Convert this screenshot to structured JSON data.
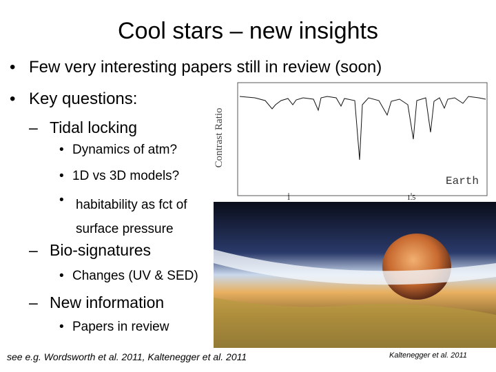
{
  "slide": {
    "title": "Cool stars – new insights",
    "bullets": [
      {
        "text": "Few very interesting papers still in review (soon)"
      },
      {
        "text": "Key questions:",
        "items": [
          {
            "text": "Tidal locking",
            "items": [
              "Dynamics of atm?",
              "1D vs 3D models?",
              "habitability as fct of surface pressure"
            ]
          },
          {
            "text": "Bio-signatures",
            "items": [
              "Changes (UV & SED)"
            ]
          },
          {
            "text": "New information",
            "items": [
              "Papers in review"
            ]
          }
        ]
      }
    ],
    "figure": {
      "y_label": "Contrast Ratio",
      "x_tick_labels": [
        "1",
        "1.5"
      ],
      "label": "Earth",
      "credit": "Kaltenegger et al. 2011"
    },
    "footer": "see e.g. Wordsworth et al. 2011, Kaltenegger et al. 2011"
  }
}
